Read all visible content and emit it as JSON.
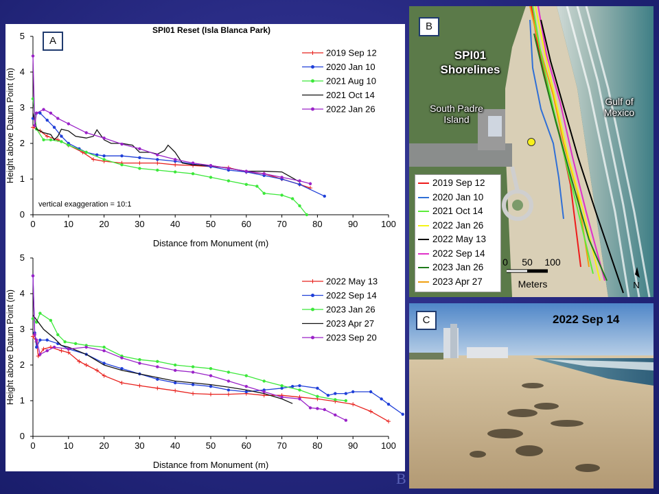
{
  "colors": {
    "red": "#e8201c",
    "blue": "#1f3fd8",
    "green": "#3ce83a",
    "black": "#111111",
    "purple": "#9a22c8"
  },
  "panel_labels": {
    "a": "A",
    "b": "B",
    "c": "C"
  },
  "watermark": "B",
  "chart_data": [
    {
      "type": "line",
      "title": "SPI01 Reset (Isla Blanca Park)",
      "xlabel": "Distance from Monument (m)",
      "ylabel": "Height above Datum Point (m)",
      "xlim": [
        0,
        100
      ],
      "ylim": [
        0,
        5
      ],
      "xticks": [
        "0",
        "10",
        "20",
        "30",
        "40",
        "50",
        "60",
        "70",
        "80",
        "90",
        "100"
      ],
      "yticks": [
        "0",
        "1",
        "2",
        "3",
        "4",
        "5"
      ],
      "annotation": "vertical exaggeration = 10:1",
      "legend_position": "top-right",
      "series": [
        {
          "name": "2019 Sep 12",
          "color": "red",
          "marker": "plus",
          "points": [
            [
              0,
              2.45
            ],
            [
              2,
              2.35
            ],
            [
              4,
              2.2
            ],
            [
              7,
              2.1
            ],
            [
              10,
              1.95
            ],
            [
              14,
              1.75
            ],
            [
              17,
              1.55
            ],
            [
              20,
              1.5
            ],
            [
              25,
              1.45
            ],
            [
              30,
              1.45
            ],
            [
              35,
              1.45
            ],
            [
              40,
              1.4
            ],
            [
              45,
              1.38
            ],
            [
              50,
              1.35
            ],
            [
              55,
              1.32
            ],
            [
              60,
              1.2
            ],
            [
              65,
              1.15
            ],
            [
              70,
              1.0
            ],
            [
              75,
              0.85
            ],
            [
              78,
              0.75
            ]
          ]
        },
        {
          "name": "2020 Jan 10",
          "color": "blue",
          "marker": "dot",
          "points": [
            [
              0,
              2.7
            ],
            [
              1,
              2.85
            ],
            [
              2,
              2.85
            ],
            [
              4,
              2.65
            ],
            [
              6,
              2.45
            ],
            [
              8,
              2.2
            ],
            [
              10,
              2.0
            ],
            [
              13,
              1.85
            ],
            [
              15,
              1.75
            ],
            [
              18,
              1.68
            ],
            [
              20,
              1.65
            ],
            [
              25,
              1.65
            ],
            [
              30,
              1.6
            ],
            [
              35,
              1.55
            ],
            [
              40,
              1.5
            ],
            [
              45,
              1.42
            ],
            [
              50,
              1.35
            ],
            [
              55,
              1.25
            ],
            [
              60,
              1.2
            ],
            [
              65,
              1.1
            ],
            [
              70,
              1.0
            ],
            [
              75,
              0.85
            ],
            [
              82,
              0.52
            ]
          ]
        },
        {
          "name": "2021 Aug 10",
          "color": "green",
          "marker": "dot",
          "points": [
            [
              0,
              3.25
            ],
            [
              1,
              2.4
            ],
            [
              3,
              2.1
            ],
            [
              5,
              2.1
            ],
            [
              8,
              2.05
            ],
            [
              10,
              1.95
            ],
            [
              15,
              1.75
            ],
            [
              20,
              1.55
            ],
            [
              25,
              1.4
            ],
            [
              30,
              1.3
            ],
            [
              35,
              1.25
            ],
            [
              40,
              1.2
            ],
            [
              45,
              1.15
            ],
            [
              50,
              1.05
            ],
            [
              55,
              0.95
            ],
            [
              60,
              0.85
            ],
            [
              63,
              0.8
            ],
            [
              65,
              0.6
            ],
            [
              70,
              0.55
            ],
            [
              73,
              0.45
            ],
            [
              75,
              0.25
            ],
            [
              77,
              0.0
            ]
          ]
        },
        {
          "name": "2021 Oct 14",
          "color": "black",
          "marker": "none",
          "points": [
            [
              0,
              2.85
            ],
            [
              1,
              2.4
            ],
            [
              3,
              2.3
            ],
            [
              5,
              2.25
            ],
            [
              6,
              2.1
            ],
            [
              7,
              2.2
            ],
            [
              8,
              2.4
            ],
            [
              10,
              2.35
            ],
            [
              12,
              2.2
            ],
            [
              15,
              2.15
            ],
            [
              17,
              2.2
            ],
            [
              18,
              2.38
            ],
            [
              20,
              2.1
            ],
            [
              22,
              2.0
            ],
            [
              25,
              2.0
            ],
            [
              28,
              1.95
            ],
            [
              30,
              1.75
            ],
            [
              33,
              1.75
            ],
            [
              35,
              1.7
            ],
            [
              37,
              1.8
            ],
            [
              38,
              1.95
            ],
            [
              40,
              1.75
            ],
            [
              42,
              1.45
            ],
            [
              45,
              1.4
            ],
            [
              50,
              1.38
            ],
            [
              55,
              1.3
            ],
            [
              60,
              1.22
            ],
            [
              65,
              1.22
            ],
            [
              70,
              1.2
            ],
            [
              75,
              0.92
            ]
          ]
        },
        {
          "name": "2022 Jan 26",
          "color": "purple",
          "marker": "dot",
          "points": [
            [
              0,
              4.45
            ],
            [
              0.5,
              2.5
            ],
            [
              1,
              2.85
            ],
            [
              3,
              2.95
            ],
            [
              5,
              2.85
            ],
            [
              7,
              2.7
            ],
            [
              10,
              2.55
            ],
            [
              15,
              2.3
            ],
            [
              20,
              2.15
            ],
            [
              25,
              1.98
            ],
            [
              30,
              1.85
            ],
            [
              35,
              1.68
            ],
            [
              40,
              1.55
            ],
            [
              45,
              1.45
            ],
            [
              50,
              1.38
            ],
            [
              55,
              1.3
            ],
            [
              60,
              1.22
            ],
            [
              65,
              1.15
            ],
            [
              70,
              1.05
            ],
            [
              75,
              0.95
            ],
            [
              78,
              0.87
            ]
          ]
        }
      ]
    },
    {
      "type": "line",
      "title": "",
      "xlabel": "Distance from Monument (m)",
      "ylabel": "Height above Datum Point (m)",
      "xlim": [
        0,
        100
      ],
      "ylim": [
        0,
        5
      ],
      "xticks": [
        "0",
        "10",
        "20",
        "30",
        "40",
        "50",
        "60",
        "70",
        "80",
        "90",
        "100"
      ],
      "yticks": [
        "0",
        "1",
        "2",
        "3",
        "4",
        "5"
      ],
      "legend_position": "top-right",
      "series": [
        {
          "name": "2022 May 13",
          "color": "red",
          "marker": "plus",
          "points": [
            [
              0,
              2.8
            ],
            [
              1,
              2.65
            ],
            [
              1.5,
              2.25
            ],
            [
              3,
              2.45
            ],
            [
              5,
              2.5
            ],
            [
              8,
              2.4
            ],
            [
              10,
              2.35
            ],
            [
              13,
              2.1
            ],
            [
              15,
              2.0
            ],
            [
              18,
              1.85
            ],
            [
              20,
              1.7
            ],
            [
              25,
              1.5
            ],
            [
              30,
              1.42
            ],
            [
              35,
              1.35
            ],
            [
              40,
              1.28
            ],
            [
              45,
              1.2
            ],
            [
              50,
              1.18
            ],
            [
              55,
              1.18
            ],
            [
              60,
              1.2
            ],
            [
              65,
              1.15
            ],
            [
              70,
              1.15
            ],
            [
              75,
              1.1
            ],
            [
              80,
              1.05
            ],
            [
              85,
              0.98
            ],
            [
              90,
              0.9
            ],
            [
              95,
              0.7
            ],
            [
              100,
              0.42
            ]
          ]
        },
        {
          "name": "2022 Sep 14",
          "color": "blue",
          "marker": "dot",
          "points": [
            [
              0,
              4.5
            ],
            [
              0.5,
              2.9
            ],
            [
              1,
              2.5
            ],
            [
              2,
              2.7
            ],
            [
              4,
              2.7
            ],
            [
              7,
              2.6
            ],
            [
              10,
              2.45
            ],
            [
              15,
              2.3
            ],
            [
              20,
              2.05
            ],
            [
              25,
              1.9
            ],
            [
              30,
              1.75
            ],
            [
              35,
              1.6
            ],
            [
              40,
              1.5
            ],
            [
              45,
              1.45
            ],
            [
              50,
              1.4
            ],
            [
              55,
              1.3
            ],
            [
              60,
              1.25
            ],
            [
              65,
              1.3
            ],
            [
              70,
              1.35
            ],
            [
              73,
              1.4
            ],
            [
              75,
              1.42
            ],
            [
              80,
              1.35
            ],
            [
              83,
              1.15
            ],
            [
              85,
              1.2
            ],
            [
              88,
              1.2
            ],
            [
              90,
              1.25
            ],
            [
              95,
              1.25
            ],
            [
              98,
              1.05
            ],
            [
              100,
              0.9
            ],
            [
              104,
              0.62
            ]
          ]
        },
        {
          "name": "2023 Jan 26",
          "color": "green",
          "marker": "dot",
          "points": [
            [
              0,
              3.3
            ],
            [
              1,
              3.2
            ],
            [
              2,
              3.45
            ],
            [
              5,
              3.25
            ],
            [
              7,
              2.85
            ],
            [
              9,
              2.65
            ],
            [
              12,
              2.6
            ],
            [
              15,
              2.55
            ],
            [
              20,
              2.5
            ],
            [
              25,
              2.25
            ],
            [
              30,
              2.15
            ],
            [
              35,
              2.1
            ],
            [
              40,
              2.0
            ],
            [
              45,
              1.95
            ],
            [
              50,
              1.9
            ],
            [
              55,
              1.8
            ],
            [
              60,
              1.7
            ],
            [
              65,
              1.55
            ],
            [
              70,
              1.42
            ],
            [
              75,
              1.3
            ],
            [
              80,
              1.12
            ],
            [
              85,
              1.03
            ],
            [
              88,
              1.0
            ]
          ]
        },
        {
          "name": "2023 Apr 27",
          "color": "black",
          "marker": "none",
          "points": [
            [
              0,
              3.4
            ],
            [
              3,
              3.0
            ],
            [
              6,
              2.75
            ],
            [
              8,
              2.55
            ],
            [
              10,
              2.5
            ],
            [
              15,
              2.3
            ],
            [
              20,
              2.0
            ],
            [
              25,
              1.85
            ],
            [
              30,
              1.75
            ],
            [
              35,
              1.65
            ],
            [
              40,
              1.55
            ],
            [
              45,
              1.5
            ],
            [
              50,
              1.45
            ],
            [
              55,
              1.38
            ],
            [
              60,
              1.3
            ],
            [
              65,
              1.2
            ],
            [
              70,
              1.05
            ],
            [
              73,
              0.92
            ]
          ]
        },
        {
          "name": "2023 Sep 20",
          "color": "purple",
          "marker": "dot",
          "points": [
            [
              0,
              4.5
            ],
            [
              0.5,
              2.85
            ],
            [
              1,
              2.7
            ],
            [
              2,
              2.3
            ],
            [
              4,
              2.4
            ],
            [
              6,
              2.5
            ],
            [
              10,
              2.45
            ],
            [
              15,
              2.5
            ],
            [
              20,
              2.4
            ],
            [
              25,
              2.2
            ],
            [
              30,
              2.05
            ],
            [
              35,
              1.95
            ],
            [
              40,
              1.85
            ],
            [
              45,
              1.8
            ],
            [
              50,
              1.7
            ],
            [
              55,
              1.55
            ],
            [
              60,
              1.4
            ],
            [
              65,
              1.25
            ],
            [
              70,
              1.1
            ],
            [
              75,
              1.05
            ],
            [
              78,
              0.8
            ],
            [
              80,
              0.78
            ],
            [
              82,
              0.75
            ],
            [
              85,
              0.6
            ],
            [
              88,
              0.45
            ]
          ]
        }
      ]
    }
  ],
  "map": {
    "title": [
      "SPI01",
      "Shorelines"
    ],
    "island_label": [
      "South Padre",
      "Island"
    ],
    "gulf_label": [
      "Gulf of",
      "Mexico"
    ],
    "scale_ticks": [
      "0",
      "50",
      "100"
    ],
    "scale_unit": "Meters",
    "north": "N",
    "legend": [
      {
        "label": "2019 Sep 12",
        "color": "#ee1a1a"
      },
      {
        "label": "2020 Jan 10",
        "color": "#2f6fd6"
      },
      {
        "label": "2021 Oct 14",
        "color": "#5cec3a"
      },
      {
        "label": "2022 Jan 26",
        "color": "#f4f416"
      },
      {
        "label": "2022 May 13",
        "color": "#000000"
      },
      {
        "label": "2022 Sep 14",
        "color": "#e030c8"
      },
      {
        "label": "2023 Jan 26",
        "color": "#1e7a1a"
      },
      {
        "label": "2023 Apr 27",
        "color": "#f0a010"
      }
    ]
  },
  "photo": {
    "date": "2022 Sep 14"
  }
}
